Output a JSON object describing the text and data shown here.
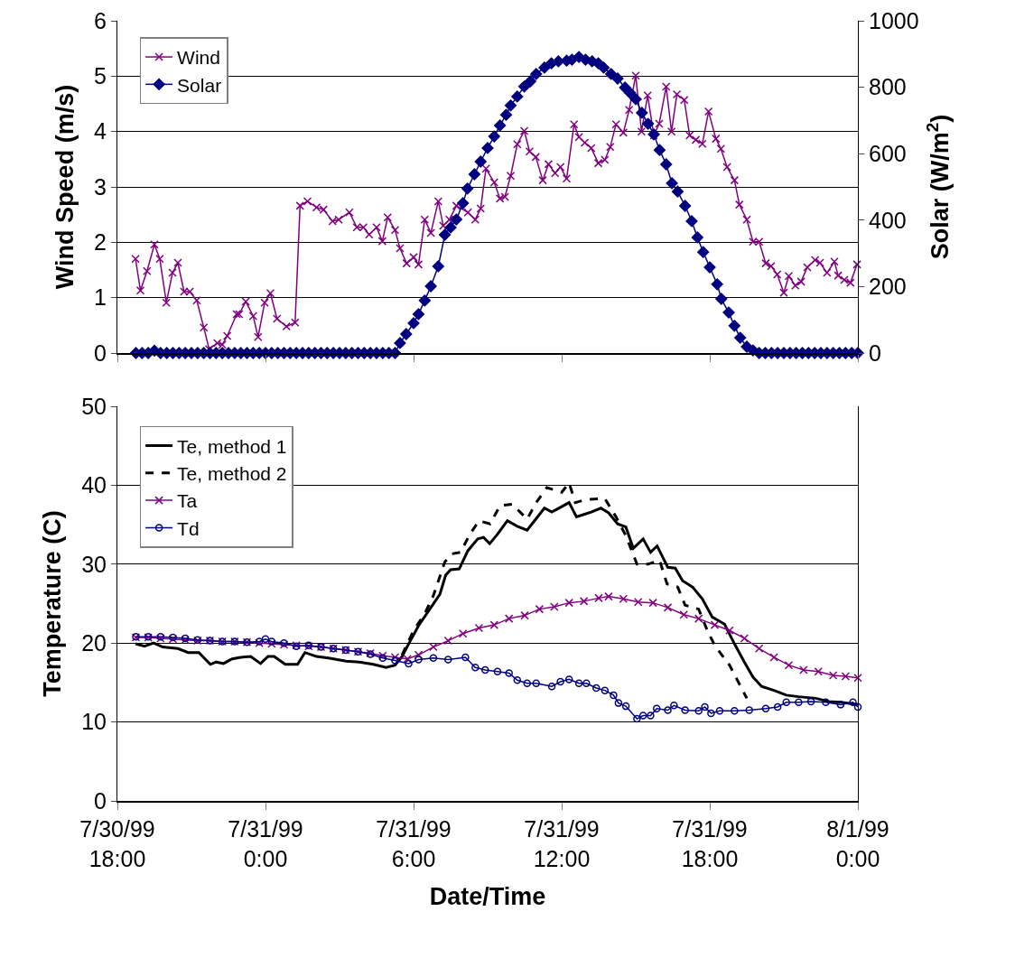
{
  "chart_data": [
    {
      "type": "line",
      "ylabel": "Wind Speed (m/s)",
      "y2label": "Solar (W/m$^{2}$)",
      "xlim": [
        "1999-07-30T18:00",
        "1999-08-01T00:00"
      ],
      "xticks": [
        {
          "value": "1999-07-30T18:00",
          "label": null
        },
        {
          "value": "1999-07-31T00:00",
          "label": null
        },
        {
          "value": "1999-07-31T06:00",
          "label": null
        },
        {
          "value": "1999-07-31T12:00",
          "label": null
        },
        {
          "value": "1999-07-31T18:00",
          "label": null
        },
        {
          "value": "1999-08-01T00:00",
          "label": null
        }
      ],
      "ylim": [
        0,
        6
      ],
      "yticks": [
        0,
        1,
        2,
        3,
        4,
        5,
        6
      ],
      "y2lim": [
        0,
        1000
      ],
      "y2ticks": [
        0,
        200,
        400,
        600,
        800,
        1000
      ],
      "grid": "y",
      "legend": "top left",
      "tick_labels": "y",
      "series": [
        {
          "name": "Wind",
          "color": "#800080",
          "marker": "cross",
          "x": [
            "1999-07-30T18:44",
            "1999-07-30T18:56",
            "1999-07-30T19:12",
            "1999-07-30T19:30",
            "1999-07-30T19:43",
            "1999-07-30T19:59",
            "1999-07-30T20:14",
            "1999-07-30T20:27",
            "1999-07-30T20:42",
            "1999-07-30T20:56",
            "1999-07-30T21:13",
            "1999-07-30T21:30",
            "1999-07-30T21:43",
            "1999-07-30T22:03",
            "1999-07-30T22:15",
            "1999-07-30T22:27",
            "1999-07-30T22:50",
            "1999-07-30T22:56",
            "1999-07-30T23:12",
            "1999-07-30T23:30",
            "1999-07-30T23:42",
            "1999-07-30T23:58",
            "1999-07-31T00:12",
            "1999-07-31T00:28",
            "1999-07-31T00:51",
            "1999-07-31T01:12",
            "1999-07-31T01:24",
            "1999-07-31T01:42",
            "1999-07-31T02:04",
            "1999-07-31T02:21",
            "1999-07-31T02:43",
            "1999-07-31T02:58",
            "1999-07-31T03:24",
            "1999-07-31T03:42",
            "1999-07-31T03:58",
            "1999-07-31T04:12",
            "1999-07-31T04:30",
            "1999-07-31T04:44",
            "1999-07-31T04:57",
            "1999-07-31T05:15",
            "1999-07-31T05:27",
            "1999-07-31T05:43",
            "1999-07-31T06:00",
            "1999-07-31T06:12",
            "1999-07-31T06:27",
            "1999-07-31T06:42",
            "1999-07-31T07:00",
            "1999-07-31T07:12",
            "1999-07-31T07:27",
            "1999-07-31T07:44",
            "1999-07-31T08:12",
            "1999-07-31T08:30",
            "1999-07-31T08:43",
            "1999-07-31T08:56",
            "1999-07-31T09:16",
            "1999-07-31T09:30",
            "1999-07-31T09:42",
            "1999-07-31T09:56",
            "1999-07-31T10:12",
            "1999-07-31T10:29",
            "1999-07-31T10:42",
            "1999-07-31T10:57",
            "1999-07-31T11:14",
            "1999-07-31T11:28",
            "1999-07-31T11:44",
            "1999-07-31T11:57",
            "1999-07-31T12:12",
            "1999-07-31T12:30",
            "1999-07-31T12:42",
            "1999-07-31T12:56",
            "1999-07-31T13:12",
            "1999-07-31T13:29",
            "1999-07-31T13:45",
            "1999-07-31T13:58",
            "1999-07-31T14:12",
            "1999-07-31T14:30",
            "1999-07-31T14:44",
            "1999-07-31T15:00",
            "1999-07-31T15:14",
            "1999-07-31T15:29",
            "1999-07-31T15:44",
            "1999-07-31T15:57",
            "1999-07-31T16:14",
            "1999-07-31T16:27",
            "1999-07-31T16:40",
            "1999-07-31T16:58",
            "1999-07-31T17:11",
            "1999-07-31T17:26",
            "1999-07-31T17:42",
            "1999-07-31T17:57",
            "1999-07-31T18:15",
            "1999-07-31T18:27",
            "1999-07-31T18:42",
            "1999-07-31T19:00",
            "1999-07-31T19:12",
            "1999-07-31T19:30",
            "1999-07-31T19:45",
            "1999-07-31T20:00",
            "1999-07-31T20:16",
            "1999-07-31T20:29",
            "1999-07-31T20:44",
            "1999-07-31T21:00",
            "1999-07-31T21:12",
            "1999-07-31T21:28",
            "1999-07-31T21:42",
            "1999-07-31T21:57",
            "1999-07-31T22:16",
            "1999-07-31T22:28",
            "1999-07-31T22:45",
            "1999-07-31T23:03",
            "1999-07-31T23:12",
            "1999-07-31T23:27",
            "1999-07-31T23:42",
            "1999-07-31T23:58"
          ],
          "values": [
            1.7,
            1.13,
            1.48,
            1.96,
            1.7,
            0.91,
            1.45,
            1.63,
            1.11,
            1.11,
            0.95,
            0.46,
            0.07,
            0.18,
            0.15,
            0.31,
            0.7,
            0.7,
            0.93,
            0.67,
            0.29,
            0.91,
            1.08,
            0.62,
            0.48,
            0.55,
            2.66,
            2.74,
            2.63,
            2.59,
            2.38,
            2.41,
            2.54,
            2.27,
            2.27,
            2.14,
            2.27,
            2.02,
            2.45,
            2.22,
            1.89,
            1.62,
            1.73,
            1.6,
            2.41,
            2.17,
            2.74,
            2.3,
            2.41,
            2.66,
            2.54,
            2.41,
            2.61,
            3.33,
            3.08,
            2.79,
            2.82,
            3.2,
            3.77,
            4.01,
            3.64,
            3.54,
            3.12,
            3.41,
            3.25,
            3.36,
            3.15,
            4.13,
            3.9,
            3.8,
            3.7,
            3.43,
            3.49,
            3.72,
            4.13,
            3.98,
            4.39,
            5.01,
            4.0,
            4.65,
            3.93,
            4.14,
            4.81,
            4.0,
            4.67,
            4.57,
            3.93,
            3.85,
            3.78,
            4.36,
            3.87,
            3.69,
            3.36,
            3.12,
            2.68,
            2.41,
            2.01,
            2.01,
            1.62,
            1.57,
            1.42,
            1.09,
            1.39,
            1.22,
            1.29,
            1.55,
            1.68,
            1.63,
            1.45,
            1.65,
            1.4,
            1.32,
            1.27,
            1.6
          ]
        },
        {
          "name": "Solar",
          "color": "#000080",
          "marker": "diamond",
          "axis": "y2",
          "x": [
            "1999-07-30T18:45",
            "1999-07-30T19:00",
            "1999-07-30T19:15",
            "1999-07-30T19:30",
            "1999-07-30T19:45",
            "1999-07-30T20:00",
            "1999-07-30T20:15",
            "1999-07-30T20:30",
            "1999-07-30T20:45",
            "1999-07-30T21:00",
            "1999-07-30T21:15",
            "1999-07-30T21:30",
            "1999-07-30T21:45",
            "1999-07-30T22:00",
            "1999-07-30T22:15",
            "1999-07-30T22:30",
            "1999-07-30T22:45",
            "1999-07-30T23:00",
            "1999-07-30T23:15",
            "1999-07-30T23:30",
            "1999-07-30T23:45",
            "1999-07-31T00:00",
            "1999-07-31T00:15",
            "1999-07-31T00:30",
            "1999-07-31T00:45",
            "1999-07-31T01:00",
            "1999-07-31T01:15",
            "1999-07-31T01:30",
            "1999-07-31T01:45",
            "1999-07-31T02:00",
            "1999-07-31T02:15",
            "1999-07-31T02:30",
            "1999-07-31T02:45",
            "1999-07-31T03:00",
            "1999-07-31T03:15",
            "1999-07-31T03:30",
            "1999-07-31T03:45",
            "1999-07-31T04:00",
            "1999-07-31T04:15",
            "1999-07-31T04:30",
            "1999-07-31T04:45",
            "1999-07-31T05:00",
            "1999-07-31T05:15",
            "1999-07-31T05:27",
            "1999-07-31T05:42",
            "1999-07-31T06:00",
            "1999-07-31T06:12",
            "1999-07-31T06:27",
            "1999-07-31T06:42",
            "1999-07-31T07:00",
            "1999-07-31T07:16",
            "1999-07-31T07:30",
            "1999-07-31T07:44",
            "1999-07-31T08:00",
            "1999-07-31T08:11",
            "1999-07-31T08:28",
            "1999-07-31T08:43",
            "1999-07-31T09:00",
            "1999-07-31T09:16",
            "1999-07-31T09:30",
            "1999-07-31T09:45",
            "1999-07-31T09:56",
            "1999-07-31T10:12",
            "1999-07-31T10:29",
            "1999-07-31T10:44",
            "1999-07-31T10:58",
            "1999-07-31T11:18",
            "1999-07-31T11:35",
            "1999-07-31T11:52",
            "1999-07-31T12:12",
            "1999-07-31T12:25",
            "1999-07-31T12:42",
            "1999-07-31T12:58",
            "1999-07-31T13:14",
            "1999-07-31T13:29",
            "1999-07-31T13:42",
            "1999-07-31T14:00",
            "1999-07-31T14:16",
            "1999-07-31T14:34",
            "1999-07-31T14:46",
            "1999-07-31T15:00",
            "1999-07-31T15:15",
            "1999-07-31T15:30",
            "1999-07-31T15:44",
            "1999-07-31T15:58",
            "1999-07-31T16:14",
            "1999-07-31T16:28",
            "1999-07-31T16:42",
            "1999-07-31T17:00",
            "1999-07-31T17:16",
            "1999-07-31T17:30",
            "1999-07-31T17:44",
            "1999-07-31T18:00",
            "1999-07-31T18:18",
            "1999-07-31T18:28",
            "1999-07-31T18:46",
            "1999-07-31T19:00",
            "1999-07-31T19:14",
            "1999-07-31T19:30",
            "1999-07-31T19:45",
            "1999-07-31T20:00",
            "1999-07-31T20:15",
            "1999-07-31T20:30",
            "1999-07-31T20:45",
            "1999-07-31T21:00",
            "1999-07-31T21:15",
            "1999-07-31T21:30",
            "1999-07-31T21:45",
            "1999-07-31T22:00",
            "1999-07-31T22:15",
            "1999-07-31T22:30",
            "1999-07-31T22:45",
            "1999-07-31T23:00",
            "1999-07-31T23:15",
            "1999-07-31T23:30",
            "1999-07-31T23:45",
            "1999-08-01T00:00"
          ],
          "values": [
            0,
            0,
            0,
            7,
            0,
            0,
            0,
            0,
            0,
            0,
            0,
            0,
            0,
            0,
            0,
            0,
            0,
            0,
            0,
            0,
            0,
            0,
            0,
            0,
            0,
            0,
            0,
            0,
            0,
            0,
            0,
            0,
            0,
            0,
            0,
            0,
            0,
            0,
            0,
            0,
            0,
            0,
            0,
            30,
            57,
            90,
            117,
            158,
            201,
            261,
            356,
            378,
            402,
            451,
            495,
            538,
            576,
            617,
            652,
            685,
            717,
            745,
            772,
            802,
            818,
            840,
            859,
            872,
            878,
            880,
            883,
            891,
            883,
            878,
            872,
            859,
            840,
            826,
            799,
            783,
            764,
            723,
            690,
            658,
            611,
            568,
            511,
            486,
            443,
            397,
            348,
            304,
            258,
            207,
            163,
            122,
            82,
            46,
            19,
            8,
            0,
            0,
            0,
            0,
            0,
            0,
            0,
            0,
            0,
            0,
            0,
            0,
            0,
            0,
            0,
            0,
            0
          ]
        }
      ]
    },
    {
      "type": "line",
      "xlabel": "Date/Time",
      "ylabel": "Temperature (C)",
      "xlim": [
        "1999-07-30T18:00",
        "1999-08-01T00:00"
      ],
      "xticks": [
        {
          "value": "1999-07-30T18:00",
          "label": "7/30/99\n18:00"
        },
        {
          "value": "1999-07-31T00:00",
          "label": "7/31/99\n0:00"
        },
        {
          "value": "1999-07-31T06:00",
          "label": "7/31/99\n6:00"
        },
        {
          "value": "1999-07-31T12:00",
          "label": "7/31/99\n12:00"
        },
        {
          "value": "1999-07-31T18:00",
          "label": "7/31/99\n18:00"
        },
        {
          "value": "1999-08-01T00:00",
          "label": "8/1/99\n0:00"
        }
      ],
      "ylim": [
        0,
        50
      ],
      "yticks": [
        0,
        10,
        20,
        30,
        40,
        50
      ],
      "grid": "y",
      "legend": "top left",
      "series": [
        {
          "name": "Te, method 1",
          "color": "#000000",
          "marker": "none",
          "line_style": "solid",
          "x": [
            "1999-07-30T18:44",
            "1999-07-30T19:06",
            "1999-07-30T19:28",
            "1999-07-30T19:50",
            "1999-07-30T20:27",
            "1999-07-30T20:52",
            "1999-07-30T21:18",
            "1999-07-30T21:46",
            "1999-07-30T22:00",
            "1999-07-30T22:18",
            "1999-07-30T22:39",
            "1999-07-30T23:00",
            "1999-07-30T23:24",
            "1999-07-30T23:48",
            "1999-07-31T00:06",
            "1999-07-31T00:21",
            "1999-07-31T00:48",
            "1999-07-31T01:18",
            "1999-07-31T01:36",
            "1999-07-31T02:04",
            "1999-07-31T02:33",
            "1999-07-31T03:16",
            "1999-07-31T03:48",
            "1999-07-31T04:22",
            "1999-07-31T04:53",
            "1999-07-31T05:15",
            "1999-07-31T05:32",
            "1999-07-31T05:48",
            "1999-07-31T06:12",
            "1999-07-31T06:42",
            "1999-07-31T07:04",
            "1999-07-31T07:18",
            "1999-07-31T07:30",
            "1999-07-31T07:51",
            "1999-07-31T08:12",
            "1999-07-31T08:36",
            "1999-07-31T08:50",
            "1999-07-31T09:05",
            "1999-07-31T09:24",
            "1999-07-31T09:48",
            "1999-07-31T10:12",
            "1999-07-31T10:36",
            "1999-07-31T10:54",
            "1999-07-31T11:18",
            "1999-07-31T11:36",
            "1999-07-31T11:57",
            "1999-07-31T12:18",
            "1999-07-31T12:36",
            "1999-07-31T12:54",
            "1999-07-31T13:12",
            "1999-07-31T13:35",
            "1999-07-31T13:54",
            "1999-07-31T14:16",
            "1999-07-31T14:36",
            "1999-07-31T14:54",
            "1999-07-31T15:18",
            "1999-07-31T15:36",
            "1999-07-31T15:52",
            "1999-07-31T16:18",
            "1999-07-31T16:36",
            "1999-07-31T16:54",
            "1999-07-31T17:18",
            "1999-07-31T17:42",
            "1999-07-31T18:06",
            "1999-07-31T18:36",
            "1999-07-31T19:00",
            "1999-07-31T19:24",
            "1999-07-31T19:45",
            "1999-07-31T20:06",
            "1999-07-31T20:36",
            "1999-07-31T21:06",
            "1999-07-31T21:36",
            "1999-07-31T22:18",
            "1999-07-31T22:48",
            "1999-07-31T23:18",
            "1999-08-01T00:00"
          ],
          "values": [
            19.9,
            19.6,
            20.0,
            19.5,
            19.3,
            18.8,
            18.8,
            17.3,
            17.6,
            17.4,
            18.0,
            18.2,
            18.3,
            17.4,
            18.3,
            18.3,
            17.3,
            17.3,
            18.8,
            18.3,
            18.1,
            17.7,
            17.6,
            17.3,
            16.9,
            17.2,
            18.3,
            19.9,
            22.2,
            24.5,
            26.2,
            28.6,
            29.3,
            29.4,
            31.7,
            33.2,
            33.4,
            32.6,
            33.8,
            35.5,
            34.8,
            34.3,
            35.5,
            37.1,
            36.6,
            37.2,
            37.8,
            36.0,
            36.3,
            36.6,
            37.1,
            36.5,
            35.1,
            34.7,
            32.0,
            33.2,
            31.5,
            32.3,
            29.6,
            29.5,
            27.9,
            27.1,
            25.6,
            23.3,
            22.4,
            19.9,
            17.6,
            15.7,
            14.5,
            14.0,
            13.4,
            13.2,
            13.0,
            12.6,
            12.5,
            12.2
          ]
        },
        {
          "name": "Te, method 2",
          "color": "#000000",
          "marker": "none",
          "line_style": "dashed",
          "x": [
            "1999-07-31T05:32",
            "1999-07-31T06:00",
            "1999-07-31T06:27",
            "1999-07-31T06:48",
            "1999-07-31T07:16",
            "1999-07-31T07:33",
            "1999-07-31T07:54",
            "1999-07-31T08:17",
            "1999-07-31T08:39",
            "1999-07-31T09:06",
            "1999-07-31T09:30",
            "1999-07-31T10:00",
            "1999-07-31T10:36",
            "1999-07-31T10:58",
            "1999-07-31T11:24",
            "1999-07-31T12:00",
            "1999-07-31T12:18",
            "1999-07-31T12:33",
            "1999-07-31T13:00",
            "1999-07-31T13:45",
            "1999-07-31T14:12",
            "1999-07-31T14:36",
            "1999-07-31T15:03",
            "1999-07-31T15:30",
            "1999-07-31T15:58",
            "1999-07-31T16:16",
            "1999-07-31T16:42",
            "1999-07-31T17:00",
            "1999-07-31T17:33",
            "1999-07-31T17:54",
            "1999-07-31T18:12",
            "1999-07-31T18:48",
            "1999-07-31T19:06",
            "1999-07-31T19:30"
          ],
          "values": [
            18.5,
            21.6,
            23.7,
            26.0,
            30.3,
            31.3,
            31.5,
            33.8,
            35.5,
            35.1,
            37.4,
            37.6,
            35.7,
            37.8,
            39.7,
            39.1,
            40.3,
            37.8,
            38.2,
            38.3,
            36.0,
            33.6,
            30.0,
            30.0,
            30.5,
            27.5,
            27.1,
            24.8,
            24.3,
            21.6,
            19.7,
            17.2,
            15.4,
            13.0
          ]
        },
        {
          "name": "Ta",
          "color": "#800080",
          "marker": "cross",
          "x": [
            "1999-07-30T18:45",
            "1999-07-30T19:15",
            "1999-07-30T19:45",
            "1999-07-30T20:15",
            "1999-07-30T20:45",
            "1999-07-30T21:15",
            "1999-07-30T21:45",
            "1999-07-30T22:15",
            "1999-07-30T22:45",
            "1999-07-30T23:15",
            "1999-07-30T23:45",
            "1999-07-31T00:15",
            "1999-07-31T00:45",
            "1999-07-31T01:15",
            "1999-07-31T01:45",
            "1999-07-31T02:15",
            "1999-07-31T02:45",
            "1999-07-31T03:15",
            "1999-07-31T03:45",
            "1999-07-31T04:15",
            "1999-07-31T04:45",
            "1999-07-31T05:15",
            "1999-07-31T05:45",
            "1999-07-31T06:12",
            "1999-07-31T06:48",
            "1999-07-31T07:24",
            "1999-07-31T08:00",
            "1999-07-31T08:39",
            "1999-07-31T09:16",
            "1999-07-31T09:52",
            "1999-07-31T10:30",
            "1999-07-31T11:06",
            "1999-07-31T11:42",
            "1999-07-31T12:18",
            "1999-07-31T12:54",
            "1999-07-31T13:30",
            "1999-07-31T13:54",
            "1999-07-31T14:30",
            "1999-07-31T15:06",
            "1999-07-31T15:42",
            "1999-07-31T16:18",
            "1999-07-31T16:57",
            "1999-07-31T17:33",
            "1999-07-31T18:12",
            "1999-07-31T18:48",
            "1999-07-31T19:24",
            "1999-07-31T20:00",
            "1999-07-31T20:36",
            "1999-07-31T21:12",
            "1999-07-31T21:48",
            "1999-07-31T22:24",
            "1999-07-31T23:00",
            "1999-07-31T23:30",
            "1999-08-01T00:00"
          ],
          "values": [
            20.7,
            20.7,
            20.6,
            20.5,
            20.4,
            20.3,
            20.3,
            20.2,
            20.2,
            20.1,
            20.0,
            19.9,
            19.8,
            19.7,
            19.6,
            19.5,
            19.3,
            19.1,
            18.9,
            18.7,
            18.4,
            18.2,
            18.0,
            18.5,
            19.5,
            20.3,
            21.2,
            21.9,
            22.3,
            23.1,
            23.5,
            24.3,
            24.6,
            25.1,
            25.3,
            25.7,
            25.9,
            25.6,
            25.2,
            25.1,
            24.5,
            23.6,
            23.1,
            22.3,
            21.6,
            20.6,
            19.3,
            18.2,
            17.2,
            16.6,
            16.4,
            15.9,
            15.8,
            15.6
          ]
        },
        {
          "name": "Td",
          "color": "#000080",
          "marker": "circle",
          "x": [
            "1999-07-30T18:45",
            "1999-07-30T19:15",
            "1999-07-30T19:45",
            "1999-07-30T20:15",
            "1999-07-30T20:45",
            "1999-07-30T21:15",
            "1999-07-30T21:45",
            "1999-07-30T22:15",
            "1999-07-30T22:45",
            "1999-07-30T23:15",
            "1999-07-30T23:45",
            "1999-07-31T00:00",
            "1999-07-31T00:15",
            "1999-07-31T00:45",
            "1999-07-31T01:15",
            "1999-07-31T01:45",
            "1999-07-31T02:15",
            "1999-07-31T02:45",
            "1999-07-31T03:15",
            "1999-07-31T03:45",
            "1999-07-31T04:15",
            "1999-07-31T04:45",
            "1999-07-31T05:15",
            "1999-07-31T05:48",
            "1999-07-31T06:12",
            "1999-07-31T06:48",
            "1999-07-31T07:24",
            "1999-07-31T08:06",
            "1999-07-31T08:30",
            "1999-07-31T08:54",
            "1999-07-31T09:24",
            "1999-07-31T09:52",
            "1999-07-31T10:12",
            "1999-07-31T10:36",
            "1999-07-31T10:58",
            "1999-07-31T11:36",
            "1999-07-31T11:57",
            "1999-07-31T12:18",
            "1999-07-31T12:42",
            "1999-07-31T13:00",
            "1999-07-31T13:24",
            "1999-07-31T13:45",
            "1999-07-31T14:06",
            "1999-07-31T14:18",
            "1999-07-31T14:36",
            "1999-07-31T15:03",
            "1999-07-31T15:18",
            "1999-07-31T15:36",
            "1999-07-31T15:51",
            "1999-07-31T16:18",
            "1999-07-31T16:33",
            "1999-07-31T17:00",
            "1999-07-31T17:33",
            "1999-07-31T17:48",
            "1999-07-31T18:03",
            "1999-07-31T18:24",
            "1999-07-31T19:00",
            "1999-07-31T19:36",
            "1999-07-31T20:16",
            "1999-07-31T20:45",
            "1999-07-31T21:06",
            "1999-07-31T21:36",
            "1999-07-31T22:06",
            "1999-07-31T22:42",
            "1999-07-31T23:18",
            "1999-07-31T23:48",
            "1999-08-01T00:00"
          ],
          "values": [
            20.8,
            20.8,
            20.8,
            20.7,
            20.6,
            20.4,
            20.3,
            20.2,
            20.2,
            20.1,
            20.2,
            20.5,
            20.2,
            20.0,
            19.6,
            19.7,
            19.5,
            19.3,
            19.1,
            18.9,
            18.6,
            18.1,
            17.8,
            17.4,
            17.9,
            18.1,
            17.9,
            18.2,
            16.9,
            16.6,
            16.4,
            16.2,
            15.3,
            14.9,
            14.9,
            14.5,
            15.1,
            15.4,
            14.9,
            14.9,
            14.3,
            14.0,
            13.4,
            12.4,
            12.0,
            10.4,
            10.8,
            10.8,
            11.7,
            11.5,
            12.1,
            11.5,
            11.4,
            11.9,
            11.1,
            11.4,
            11.4,
            11.5,
            11.7,
            11.9,
            12.5,
            12.5,
            12.6,
            12.5,
            12.2,
            12.5,
            11.9
          ]
        }
      ]
    }
  ]
}
